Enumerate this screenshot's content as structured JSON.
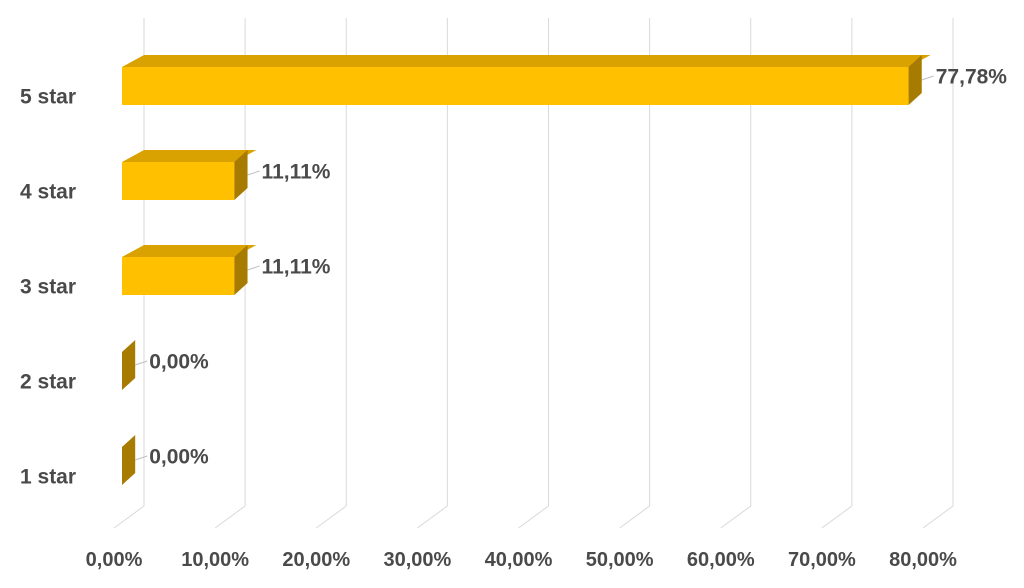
{
  "chart_data": {
    "type": "bar",
    "orientation": "horizontal",
    "style": "3d",
    "categories": [
      "5 star",
      "4 star",
      "3 star",
      "2 star",
      "1 star"
    ],
    "values": [
      77.78,
      11.11,
      11.11,
      0.0,
      0.0
    ],
    "data_labels": [
      "77,78%",
      "11,11%",
      "11,11%",
      "0,00%",
      "0,00%"
    ],
    "xlim": [
      0,
      80
    ],
    "xticks": [
      0,
      10,
      20,
      30,
      40,
      50,
      60,
      70,
      80
    ],
    "xtick_labels": [
      "0,00%",
      "10,00%",
      "20,00%",
      "30,00%",
      "40,00%",
      "50,00%",
      "60,00%",
      "70,00%",
      "80,00%"
    ],
    "grid": true,
    "legend": "none",
    "colors": {
      "bar_front": "#FFC000",
      "bar_top": "#D9A200",
      "bar_side": "#A77B00",
      "grid": "#D9D9D9",
      "text": "#4A4A4A"
    }
  }
}
